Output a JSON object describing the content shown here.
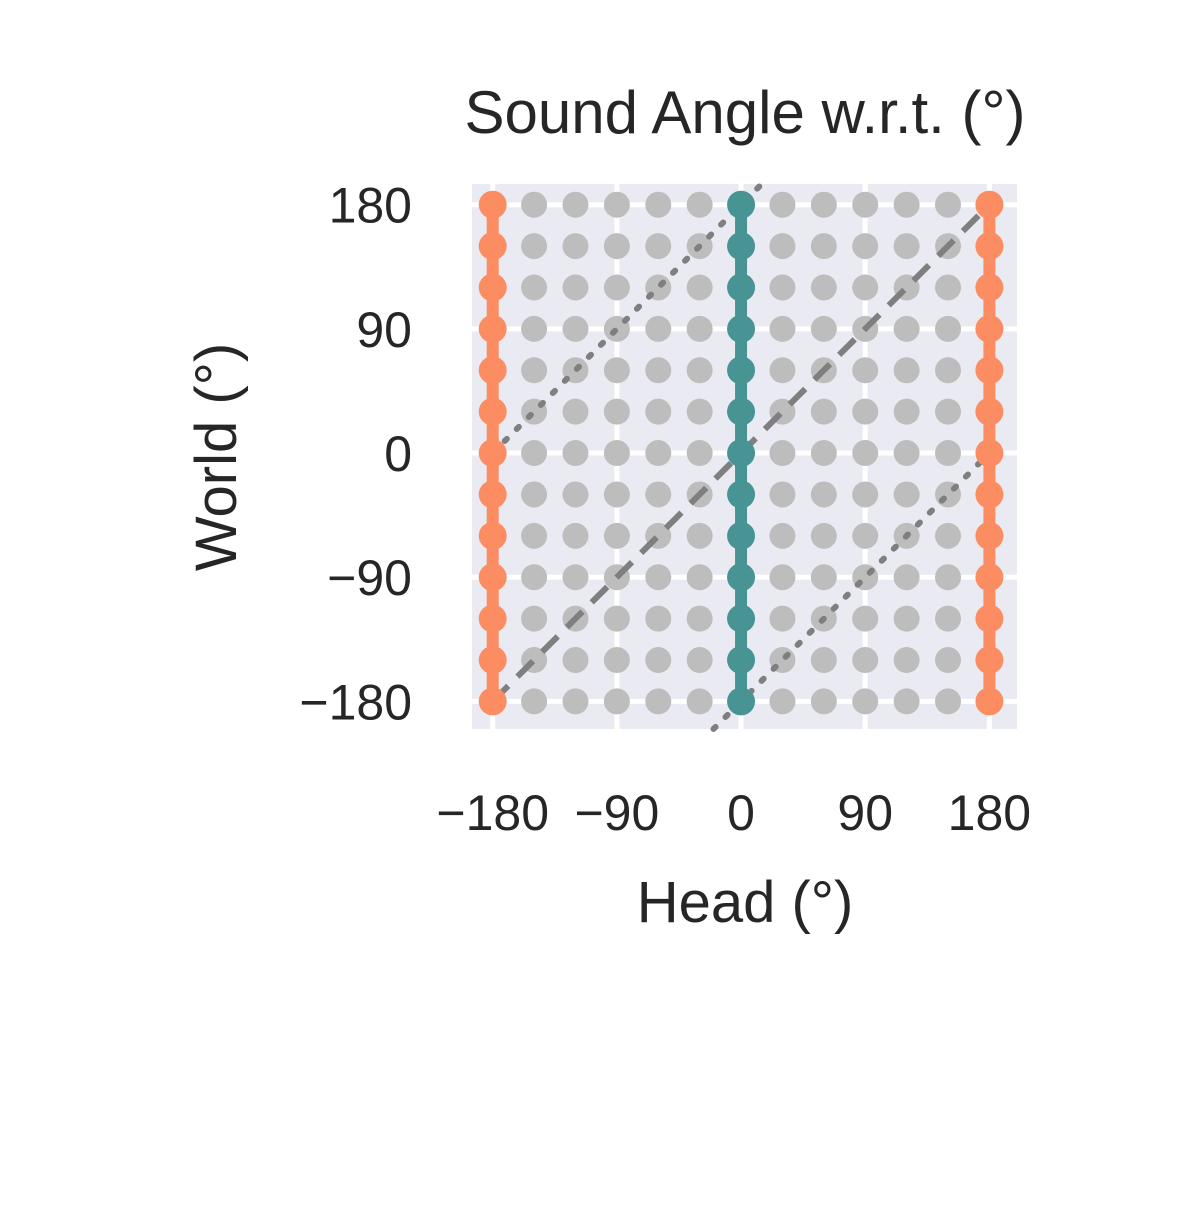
{
  "chart_data": {
    "type": "scatter",
    "title": "Sound Angle w.r.t. (°)",
    "xlabel": "Head (°)",
    "ylabel": "World (°)",
    "xlim": [
      -195,
      200
    ],
    "ylim": [
      -200,
      195
    ],
    "x_ticks": [
      -180,
      -90,
      0,
      90,
      180
    ],
    "x_tick_labels": [
      "−180",
      "−90",
      "0",
      "90",
      "180"
    ],
    "y_ticks": [
      -180,
      -90,
      0,
      90,
      180
    ],
    "y_tick_labels": [
      "−180",
      "−90",
      "0",
      "90",
      "180"
    ],
    "grid": true,
    "background_color": "#EAEAF2",
    "grid_points": {
      "x_values": [
        -180,
        -150,
        -120,
        -90,
        -60,
        -30,
        0,
        30,
        60,
        90,
        120,
        150,
        180
      ],
      "y_values": [
        -180,
        -150,
        -120,
        -90,
        -60,
        -30,
        0,
        30,
        60,
        90,
        120,
        150,
        180
      ],
      "color": "#BDBDBD"
    },
    "highlight_series": [
      {
        "x": -180,
        "y_values": [
          -180,
          -150,
          -120,
          -90,
          -60,
          -30,
          0,
          30,
          60,
          90,
          120,
          150,
          180
        ],
        "color": "#FC8D62"
      },
      {
        "x": 180,
        "y_values": [
          -180,
          -150,
          -120,
          -90,
          -60,
          -30,
          0,
          30,
          60,
          90,
          120,
          150,
          180
        ],
        "color": "#FC8D62"
      },
      {
        "x": 0,
        "y_values": [
          -180,
          -150,
          -120,
          -90,
          -60,
          -30,
          0,
          30,
          60,
          90,
          120,
          150,
          180
        ],
        "color": "#489494"
      }
    ],
    "reference_lines": [
      {
        "style": "dashed",
        "color": "#7F7F7F",
        "points": [
          [
            -180,
            -180
          ],
          [
            180,
            180
          ]
        ]
      },
      {
        "style": "dotted",
        "color": "#7F7F7F",
        "points": [
          [
            -180,
            0
          ],
          [
            20,
            200
          ]
        ]
      },
      {
        "style": "dotted",
        "color": "#7F7F7F",
        "points": [
          [
            -20,
            -200
          ],
          [
            180,
            0
          ]
        ]
      }
    ]
  }
}
